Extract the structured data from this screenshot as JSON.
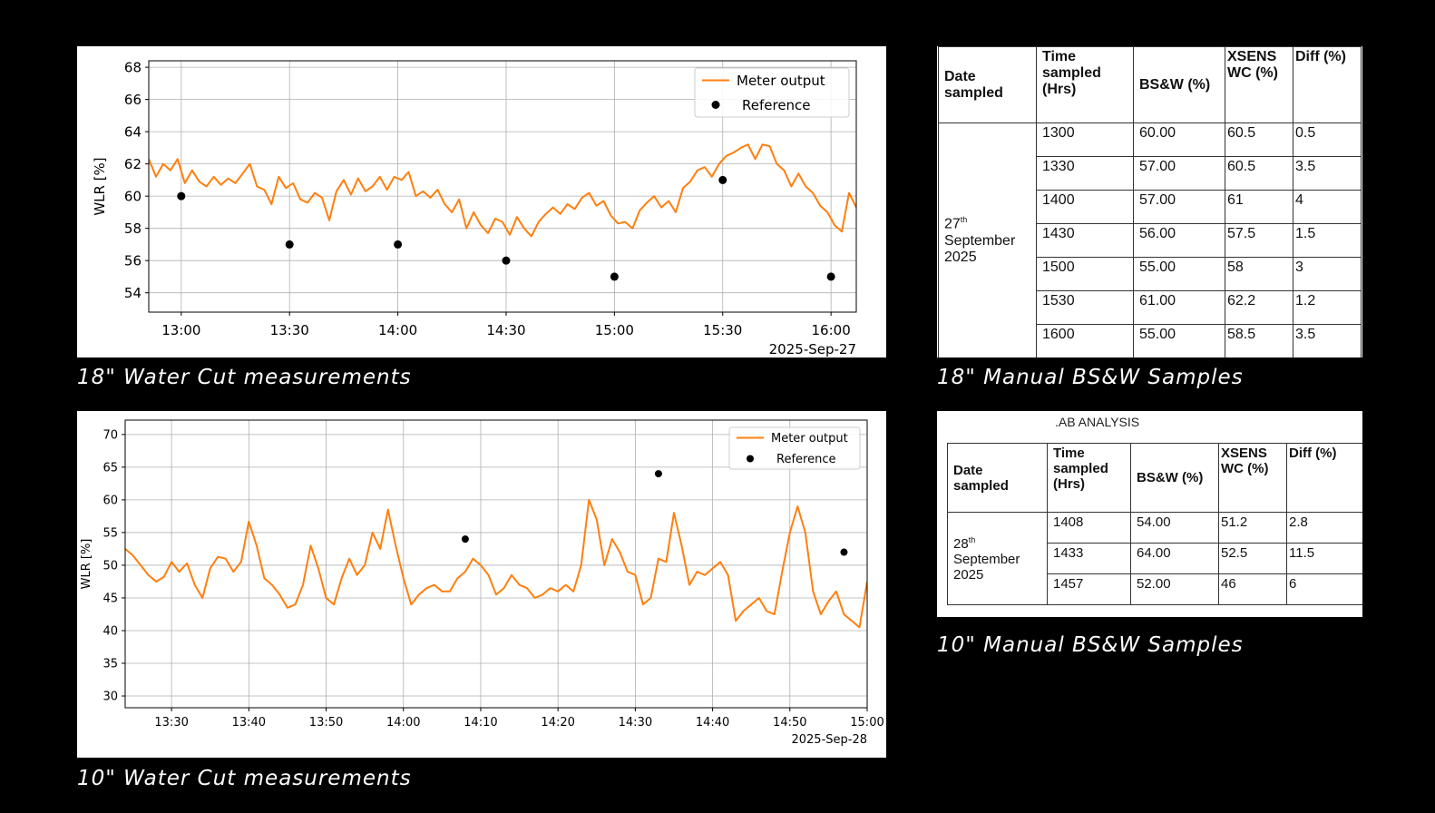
{
  "captions": {
    "chart18": "18\" Water Cut measurements",
    "chart10": "10\" Water Cut measurements",
    "table18": "18\" Manual BS&W Samples",
    "table10": "10\" Manual BS&W Samples"
  },
  "colors": {
    "meter": "#ff7f0e",
    "reference": "#000000",
    "grid": "#b0b0b0"
  },
  "chart_data": [
    {
      "type": "line",
      "id": "chart18",
      "ylabel": "WLR [%]",
      "xlabel": "",
      "date_label": "2025-Sep-27",
      "xlim": [
        "12:51",
        "16:07"
      ],
      "ylim": [
        52.8,
        68.4
      ],
      "yticks": [
        54,
        56,
        58,
        60,
        62,
        64,
        66,
        68
      ],
      "xticks": [
        "13:00",
        "13:30",
        "14:00",
        "14:30",
        "15:00",
        "15:30",
        "16:00"
      ],
      "grid": true,
      "legend_position": "top-right",
      "series": [
        {
          "name": "Meter output",
          "style": "line",
          "points": [
            [
              "12:51",
              62.3
            ],
            [
              "12:53",
              61.2
            ],
            [
              "12:55",
              62.0
            ],
            [
              "12:57",
              61.6
            ],
            [
              "12:59",
              62.3
            ],
            [
              "13:01",
              60.8
            ],
            [
              "13:03",
              61.6
            ],
            [
              "13:05",
              60.9
            ],
            [
              "13:07",
              60.6
            ],
            [
              "13:09",
              61.2
            ],
            [
              "13:11",
              60.7
            ],
            [
              "13:13",
              61.1
            ],
            [
              "13:15",
              60.8
            ],
            [
              "13:17",
              61.4
            ],
            [
              "13:19",
              62.0
            ],
            [
              "13:21",
              60.6
            ],
            [
              "13:23",
              60.4
            ],
            [
              "13:25",
              59.5
            ],
            [
              "13:27",
              61.2
            ],
            [
              "13:29",
              60.5
            ],
            [
              "13:31",
              60.8
            ],
            [
              "13:33",
              59.8
            ],
            [
              "13:35",
              59.6
            ],
            [
              "13:37",
              60.2
            ],
            [
              "13:39",
              59.9
            ],
            [
              "13:41",
              58.5
            ],
            [
              "13:43",
              60.3
            ],
            [
              "13:45",
              61.0
            ],
            [
              "13:47",
              60.1
            ],
            [
              "13:49",
              61.1
            ],
            [
              "13:51",
              60.3
            ],
            [
              "13:53",
              60.6
            ],
            [
              "13:55",
              61.2
            ],
            [
              "13:57",
              60.4
            ],
            [
              "13:59",
              61.2
            ],
            [
              "14:01",
              61.0
            ],
            [
              "14:03",
              61.5
            ],
            [
              "14:05",
              60.0
            ],
            [
              "14:07",
              60.3
            ],
            [
              "14:09",
              59.9
            ],
            [
              "14:11",
              60.4
            ],
            [
              "14:13",
              59.5
            ],
            [
              "14:15",
              59.0
            ],
            [
              "14:17",
              59.8
            ],
            [
              "14:19",
              58.0
            ],
            [
              "14:21",
              59.0
            ],
            [
              "14:23",
              58.2
            ],
            [
              "14:25",
              57.7
            ],
            [
              "14:27",
              58.6
            ],
            [
              "14:29",
              58.4
            ],
            [
              "14:31",
              57.6
            ],
            [
              "14:33",
              58.7
            ],
            [
              "14:35",
              58.0
            ],
            [
              "14:37",
              57.5
            ],
            [
              "14:39",
              58.4
            ],
            [
              "14:41",
              58.9
            ],
            [
              "14:43",
              59.3
            ],
            [
              "14:45",
              58.9
            ],
            [
              "14:47",
              59.5
            ],
            [
              "14:49",
              59.2
            ],
            [
              "14:51",
              59.9
            ],
            [
              "14:53",
              60.2
            ],
            [
              "14:55",
              59.4
            ],
            [
              "14:57",
              59.7
            ],
            [
              "14:59",
              58.8
            ],
            [
              "15:01",
              58.3
            ],
            [
              "15:03",
              58.4
            ],
            [
              "15:05",
              58.0
            ],
            [
              "15:07",
              59.1
            ],
            [
              "15:09",
              59.6
            ],
            [
              "15:11",
              60.0
            ],
            [
              "15:13",
              59.3
            ],
            [
              "15:15",
              59.7
            ],
            [
              "15:17",
              59.0
            ],
            [
              "15:19",
              60.5
            ],
            [
              "15:21",
              60.9
            ],
            [
              "15:23",
              61.6
            ],
            [
              "15:25",
              61.8
            ],
            [
              "15:27",
              61.2
            ],
            [
              "15:29",
              62.0
            ],
            [
              "15:31",
              62.5
            ],
            [
              "15:33",
              62.7
            ],
            [
              "15:35",
              63.0
            ],
            [
              "15:37",
              63.2
            ],
            [
              "15:39",
              62.3
            ],
            [
              "15:41",
              63.2
            ],
            [
              "15:43",
              63.1
            ],
            [
              "15:45",
              62.0
            ],
            [
              "15:47",
              61.6
            ],
            [
              "15:49",
              60.6
            ],
            [
              "15:51",
              61.4
            ],
            [
              "15:53",
              60.6
            ],
            [
              "15:55",
              60.2
            ],
            [
              "15:57",
              59.4
            ],
            [
              "15:59",
              59.0
            ],
            [
              "16:01",
              58.2
            ],
            [
              "16:03",
              57.8
            ],
            [
              "16:05",
              60.2
            ],
            [
              "16:07",
              59.3
            ]
          ]
        },
        {
          "name": "Reference",
          "style": "scatter",
          "points": [
            [
              "13:00",
              60
            ],
            [
              "13:30",
              57
            ],
            [
              "14:00",
              57
            ],
            [
              "14:30",
              56
            ],
            [
              "15:00",
              55
            ],
            [
              "15:30",
              61
            ],
            [
              "16:00",
              55
            ]
          ]
        }
      ]
    },
    {
      "type": "line",
      "id": "chart10",
      "ylabel": "WLR [%]",
      "xlabel": "",
      "date_label": "2025-Sep-28",
      "xlim": [
        "13:24",
        "15:00"
      ],
      "ylim": [
        28.2,
        72.2
      ],
      "yticks": [
        30,
        35,
        40,
        45,
        50,
        55,
        60,
        65,
        70
      ],
      "xticks": [
        "13:30",
        "13:40",
        "13:50",
        "14:00",
        "14:10",
        "14:20",
        "14:30",
        "14:40",
        "14:50",
        "15:00"
      ],
      "grid": true,
      "legend_position": "top-right",
      "series": [
        {
          "name": "Meter output",
          "style": "line",
          "points": [
            [
              "13:24",
              52.5
            ],
            [
              "13:25",
              51.5
            ],
            [
              "13:26",
              50.0
            ],
            [
              "13:27",
              48.5
            ],
            [
              "13:28",
              47.5
            ],
            [
              "13:29",
              48.2
            ],
            [
              "13:30",
              50.5
            ],
            [
              "13:31",
              49.0
            ],
            [
              "13:32",
              50.3
            ],
            [
              "13:33",
              47.0
            ],
            [
              "13:34",
              45.0
            ],
            [
              "13:35",
              49.5
            ],
            [
              "13:36",
              51.3
            ],
            [
              "13:37",
              51.0
            ],
            [
              "13:38",
              49.0
            ],
            [
              "13:39",
              50.5
            ],
            [
              "13:40",
              56.7
            ],
            [
              "13:41",
              53.0
            ],
            [
              "13:42",
              48.0
            ],
            [
              "13:43",
              47.0
            ],
            [
              "13:44",
              45.5
            ],
            [
              "13:45",
              43.5
            ],
            [
              "13:46",
              44.0
            ],
            [
              "13:47",
              47.0
            ],
            [
              "13:48",
              53.0
            ],
            [
              "13:49",
              49.5
            ],
            [
              "13:50",
              45.0
            ],
            [
              "13:51",
              44.0
            ],
            [
              "13:52",
              48.0
            ],
            [
              "13:53",
              51.0
            ],
            [
              "13:54",
              48.5
            ],
            [
              "13:55",
              50.0
            ],
            [
              "13:56",
              55.0
            ],
            [
              "13:57",
              52.5
            ],
            [
              "13:58",
              58.5
            ],
            [
              "13:59",
              53.0
            ],
            [
              "14:00",
              48.0
            ],
            [
              "14:01",
              44.0
            ],
            [
              "14:02",
              45.5
            ],
            [
              "14:03",
              46.5
            ],
            [
              "14:04",
              47.0
            ],
            [
              "14:05",
              46.0
            ],
            [
              "14:06",
              46.0
            ],
            [
              "14:07",
              48.0
            ],
            [
              "14:08",
              49.0
            ],
            [
              "14:09",
              51.0
            ],
            [
              "14:10",
              50.0
            ],
            [
              "14:11",
              48.5
            ],
            [
              "14:12",
              45.5
            ],
            [
              "14:13",
              46.5
            ],
            [
              "14:14",
              48.5
            ],
            [
              "14:15",
              47.0
            ],
            [
              "14:16",
              46.5
            ],
            [
              "14:17",
              45.0
            ],
            [
              "14:18",
              45.5
            ],
            [
              "14:19",
              46.5
            ],
            [
              "14:20",
              46.0
            ],
            [
              "14:21",
              47.0
            ],
            [
              "14:22",
              46.0
            ],
            [
              "14:23",
              50.0
            ],
            [
              "14:24",
              60.0
            ],
            [
              "14:25",
              57.0
            ],
            [
              "14:26",
              50.0
            ],
            [
              "14:27",
              54.0
            ],
            [
              "14:28",
              52.0
            ],
            [
              "14:29",
              49.0
            ],
            [
              "14:30",
              48.5
            ],
            [
              "14:31",
              44.0
            ],
            [
              "14:32",
              45.0
            ],
            [
              "14:33",
              51.0
            ],
            [
              "14:34",
              50.5
            ],
            [
              "14:35",
              58.0
            ],
            [
              "14:36",
              53.0
            ],
            [
              "14:37",
              47.0
            ],
            [
              "14:38",
              49.0
            ],
            [
              "14:39",
              48.5
            ],
            [
              "14:40",
              49.5
            ],
            [
              "14:41",
              50.5
            ],
            [
              "14:42",
              48.5
            ],
            [
              "14:43",
              41.5
            ],
            [
              "14:44",
              43.0
            ],
            [
              "14:45",
              44.0
            ],
            [
              "14:46",
              45.0
            ],
            [
              "14:47",
              43.0
            ],
            [
              "14:48",
              42.5
            ],
            [
              "14:49",
              49.0
            ],
            [
              "14:50",
              55.0
            ],
            [
              "14:51",
              59.0
            ],
            [
              "14:52",
              55.0
            ],
            [
              "14:53",
              46.0
            ],
            [
              "14:54",
              42.5
            ],
            [
              "14:55",
              44.5
            ],
            [
              "14:56",
              46.0
            ],
            [
              "14:57",
              42.5
            ],
            [
              "14:58",
              41.5
            ],
            [
              "14:59",
              40.5
            ],
            [
              "15:00",
              47.5
            ]
          ]
        },
        {
          "name": "Reference",
          "style": "scatter",
          "points": [
            [
              "14:08",
              54
            ],
            [
              "14:33",
              64
            ],
            [
              "14:57",
              52
            ]
          ]
        }
      ]
    }
  ],
  "tables": {
    "t18": {
      "headers": [
        "Date sampled",
        "Time sampled (Hrs)",
        "BS&W (%)",
        "XSENS WC (%)",
        "Diff (%)"
      ],
      "date_day": "27",
      "date_sup": "th",
      "date_rest": "September 2025",
      "rows": [
        [
          "1300",
          "60.00",
          "60.5",
          "0.5"
        ],
        [
          "1330",
          "57.00",
          "60.5",
          "3.5"
        ],
        [
          "1400",
          "57.00",
          "61",
          "4"
        ],
        [
          "1430",
          "56.00",
          "57.5",
          "1.5"
        ],
        [
          "1500",
          "55.00",
          "58",
          "3"
        ],
        [
          "1530",
          "61.00",
          "62.2",
          "1.2"
        ],
        [
          "1600",
          "55.00",
          "58.5",
          "3.5"
        ]
      ]
    },
    "t10": {
      "title": ".AB ANALYSIS",
      "headers": [
        "Date sampled",
        "Time sampled (Hrs)",
        "BS&W (%)",
        "XSENS WC (%)",
        "Diff (%)"
      ],
      "date_day": "28",
      "date_sup": "th",
      "date_rest": "September 2025",
      "rows": [
        [
          "1408",
          "54.00",
          "51.2",
          "2.8"
        ],
        [
          "1433",
          "64.00",
          "52.5",
          "11.5"
        ],
        [
          "1457",
          "52.00",
          "46",
          "6"
        ]
      ]
    }
  }
}
